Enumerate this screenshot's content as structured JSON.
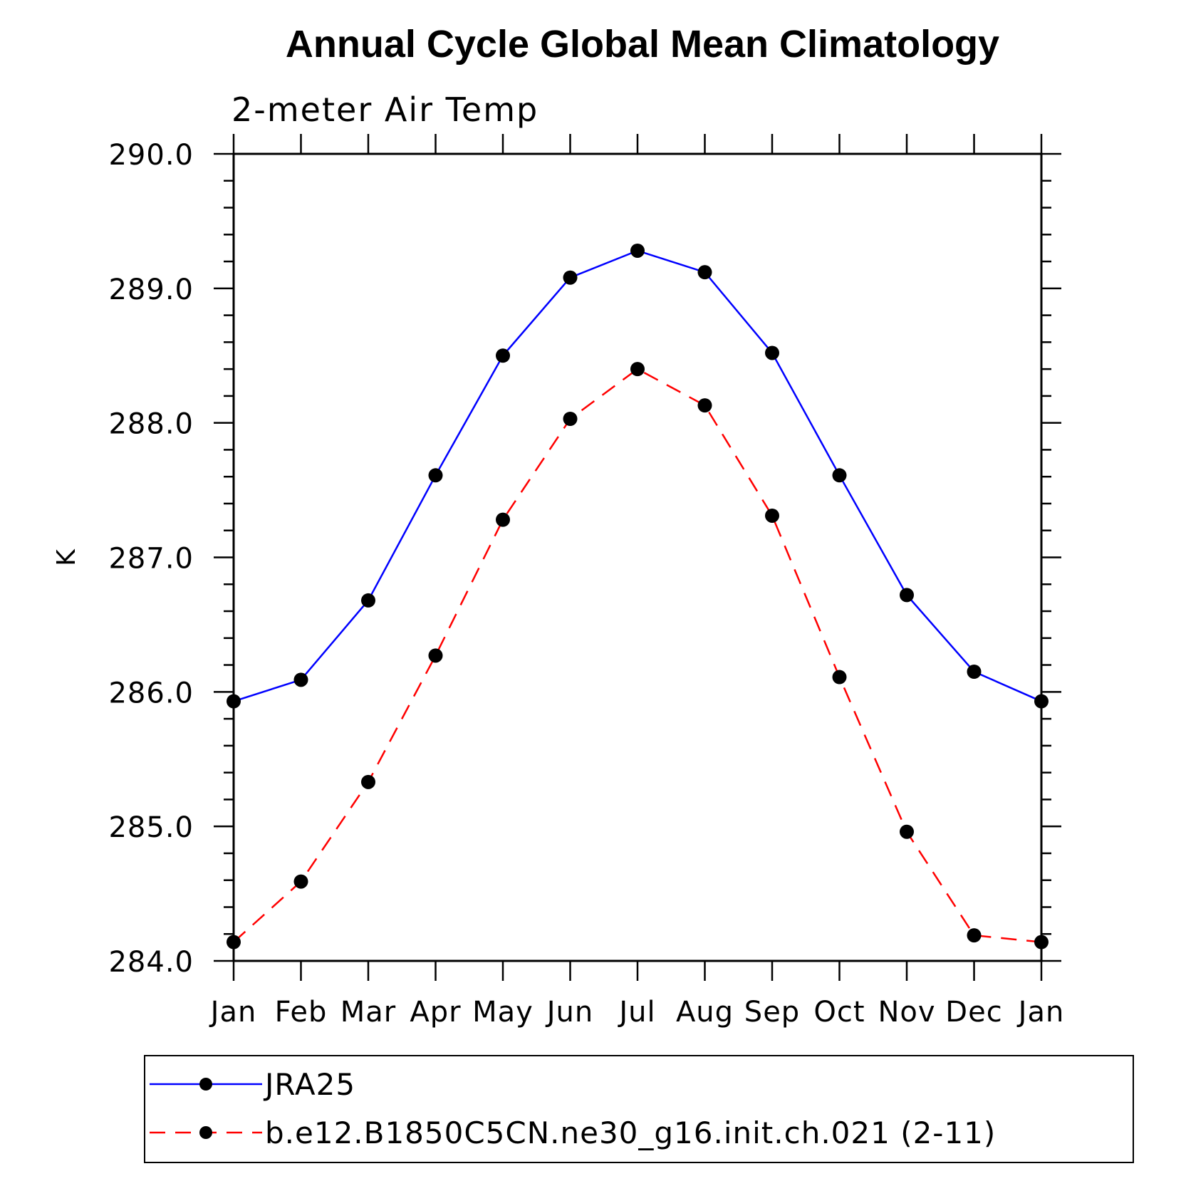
{
  "chart_data": {
    "type": "line",
    "title": "Annual Cycle Global Mean Climatology",
    "subtitle": "2-meter Air Temp",
    "xlabel": "",
    "ylabel": "K",
    "categories": [
      "Jan",
      "Feb",
      "Mar",
      "Apr",
      "May",
      "Jun",
      "Jul",
      "Aug",
      "Sep",
      "Oct",
      "Nov",
      "Dec",
      "Jan"
    ],
    "ylim": [
      284.0,
      290.0
    ],
    "yticks": [
      "284.0",
      "285.0",
      "286.0",
      "287.0",
      "288.0",
      "289.0",
      "290.0"
    ],
    "grid": false,
    "legend_position": "bottom",
    "series": [
      {
        "name": "JRA25",
        "color": "#0000ff",
        "line_style": "solid",
        "marker": "circle",
        "values": [
          285.93,
          286.09,
          286.68,
          287.61,
          288.5,
          289.08,
          289.28,
          289.12,
          288.52,
          287.61,
          286.72,
          286.15,
          285.93
        ]
      },
      {
        "name": "b.e12.B1850C5CN.ne30_g16.init.ch.021 (2-11)",
        "color": "#ff0000",
        "line_style": "dashed",
        "marker": "circle",
        "values": [
          284.14,
          284.59,
          285.33,
          286.27,
          287.28,
          288.03,
          288.4,
          288.13,
          287.31,
          286.11,
          284.96,
          284.19,
          284.14
        ]
      }
    ]
  }
}
